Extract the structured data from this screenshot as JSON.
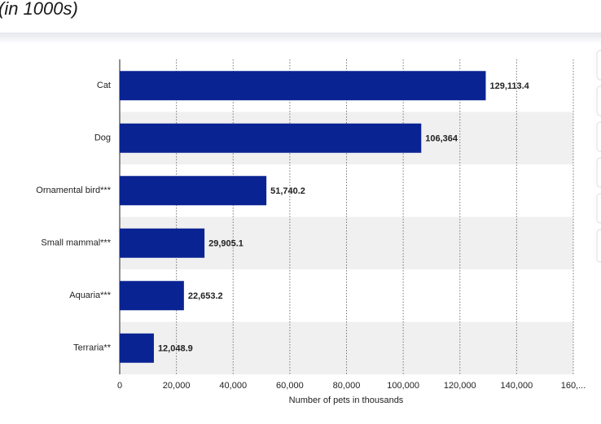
{
  "chart_data": {
    "type": "bar",
    "orientation": "horizontal",
    "title": "(in 1000s)",
    "categories": [
      "Cat",
      "Dog",
      "Ornamental bird***",
      "Small mammal***",
      "Aquaria***",
      "Terraria**"
    ],
    "values": [
      129113.4,
      106364,
      51740.2,
      29905.1,
      22653.2,
      12048.9
    ],
    "value_labels": [
      "129,113.4",
      "106,364",
      "51,740.2",
      "29,905.1",
      "22,653.2",
      "12,048.9"
    ],
    "color": "#0a2392",
    "xlabel": "Number of pets in thousands",
    "xlim": [
      0,
      160000
    ],
    "xticks": [
      0,
      {
        "value": 20000,
        "label": "20,000"
      },
      {
        "value": 40000,
        "label": "40,000"
      },
      {
        "value": 60000,
        "label": "60,000"
      },
      {
        "value": 80000,
        "label": "80,000"
      },
      {
        "value": 100000,
        "label": "100,000"
      },
      {
        "value": 120000,
        "label": "120,000"
      },
      {
        "value": 140000,
        "label": "140,000"
      },
      {
        "value": 160000,
        "label": "160,..."
      }
    ],
    "grid": true
  }
}
